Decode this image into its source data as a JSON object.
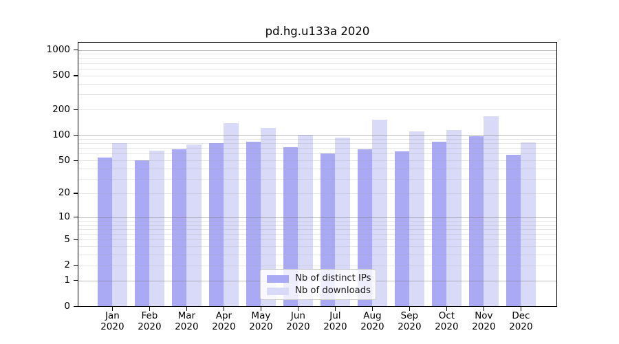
{
  "chart_data": {
    "type": "bar",
    "title": "pd.hg.u133a 2020",
    "categories": [
      "Jan",
      "Feb",
      "Mar",
      "Apr",
      "May",
      "Jun",
      "Jul",
      "Aug",
      "Sep",
      "Oct",
      "Nov",
      "Dec"
    ],
    "category_year": "2020",
    "series": [
      {
        "name": "Nb of distinct IPs",
        "color": "#a9a9f4",
        "values": [
          54,
          50,
          68,
          80,
          84,
          71,
          61,
          68,
          64,
          84,
          97,
          58
        ]
      },
      {
        "name": "Nb of downloads",
        "color": "#d9d9f8",
        "values": [
          80,
          65,
          77,
          137,
          122,
          100,
          94,
          152,
          110,
          115,
          167,
          81
        ]
      }
    ],
    "y_ticks": [
      0,
      1,
      2,
      5,
      10,
      20,
      50,
      100,
      200,
      500,
      1000
    ],
    "y_scale": "log1p",
    "ylim": [
      0,
      1200
    ],
    "xlabel": "",
    "ylabel": "",
    "grid": "horizontal major+minor, drawn over bars",
    "legend_position": "lower center",
    "colors": {
      "distinct_ips_bar": "#a9a9f4",
      "downloads_bar": "#d9d9f8",
      "major_gridline": "#b0b0b0",
      "minor_gridline": "#e6e6e6",
      "axis_spine": "#000000",
      "legend_border": "#cccccc"
    }
  }
}
